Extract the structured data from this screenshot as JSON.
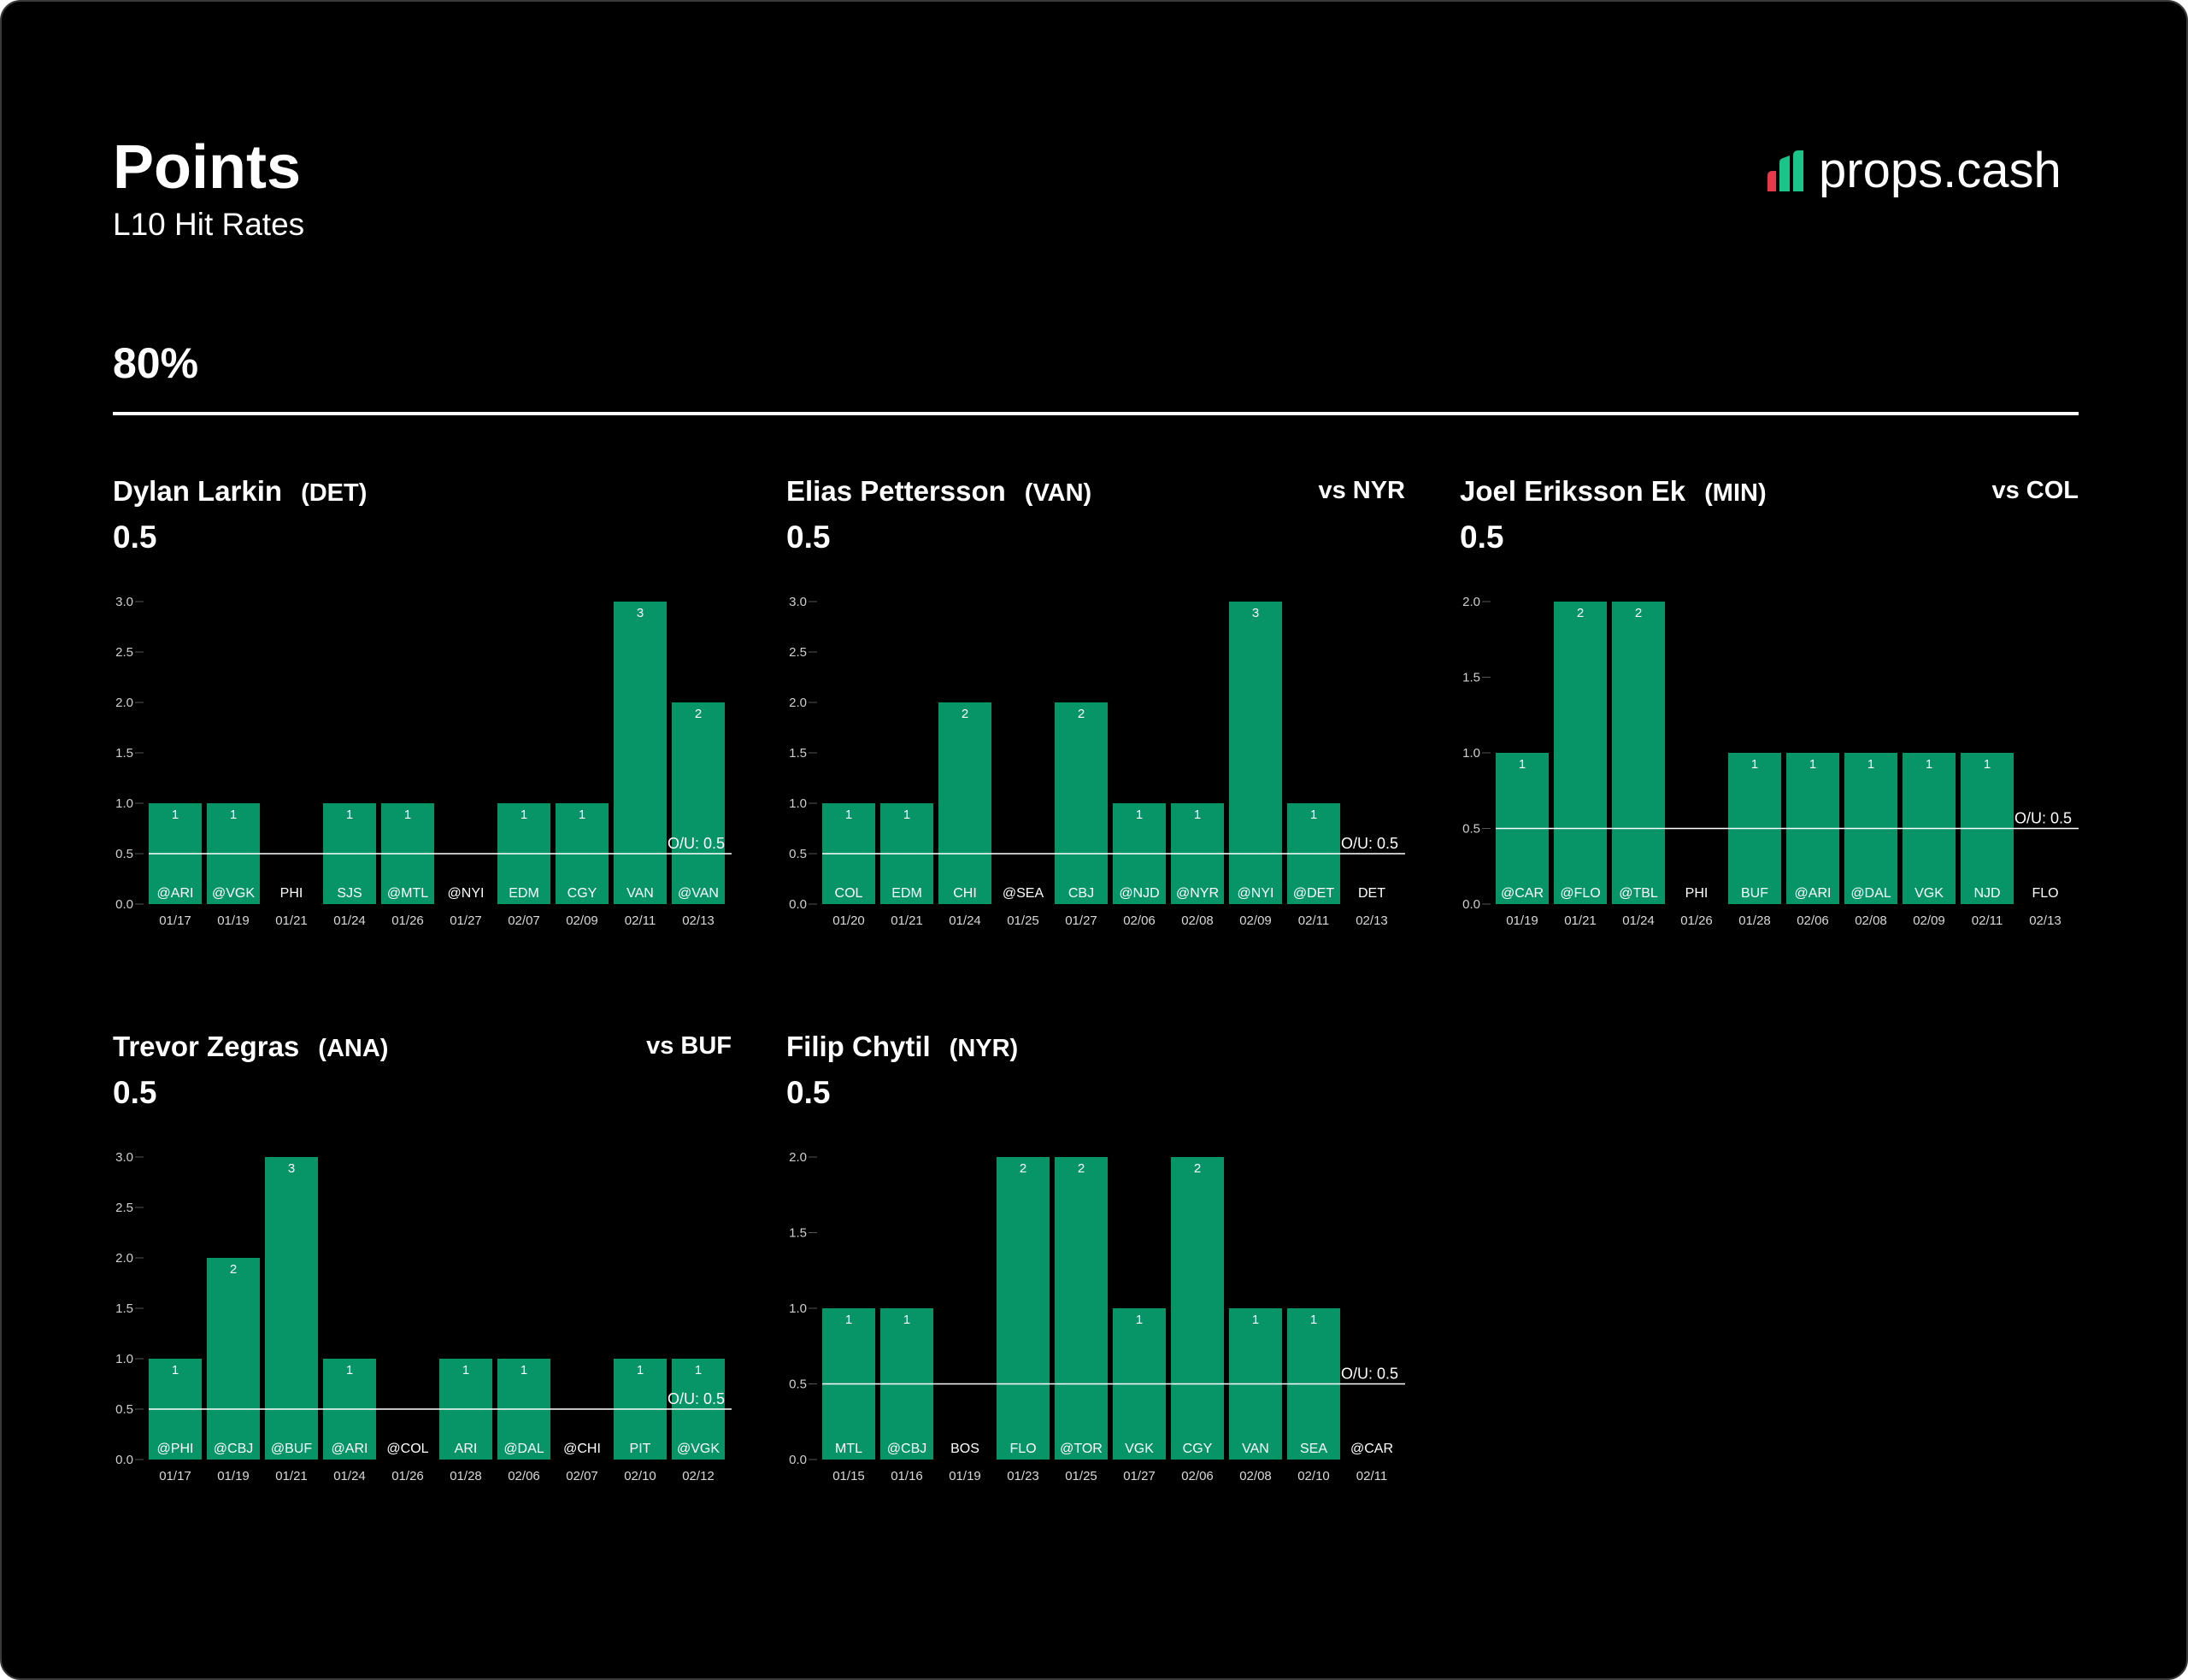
{
  "header": {
    "title": "Points",
    "subtitle": "L10 Hit Rates",
    "logo_text": "props.cash",
    "hit_rate": "80%"
  },
  "colors": {
    "background": "#000000",
    "bar": "#079467",
    "text": "#ffffff",
    "logo_red": "#e8394a",
    "logo_green": "#19c587"
  },
  "chart_data": [
    {
      "type": "bar",
      "player": "Dylan Larkin",
      "team": "(DET)",
      "opponent": "",
      "line_label": "0.5",
      "threshold": 0.5,
      "threshold_label": "O/U: 0.5",
      "ylim": [
        0,
        3.0
      ],
      "yticks": [
        "0.0",
        "0.5",
        "1.0",
        "1.5",
        "2.0",
        "2.5",
        "3.0"
      ],
      "categories": [
        "01/17",
        "01/19",
        "01/21",
        "01/24",
        "01/26",
        "01/27",
        "02/07",
        "02/09",
        "02/11",
        "02/13"
      ],
      "opponents": [
        "@ARI",
        "@VGK",
        "PHI",
        "SJS",
        "@MTL",
        "@NYI",
        "EDM",
        "CGY",
        "VAN",
        "@VAN"
      ],
      "values": [
        1,
        1,
        0,
        1,
        1,
        0,
        1,
        1,
        3,
        2
      ]
    },
    {
      "type": "bar",
      "player": "Elias Pettersson",
      "team": "(VAN)",
      "opponent": "vs NYR",
      "line_label": "0.5",
      "threshold": 0.5,
      "threshold_label": "O/U: 0.5",
      "ylim": [
        0,
        3.0
      ],
      "yticks": [
        "0.0",
        "0.5",
        "1.0",
        "1.5",
        "2.0",
        "2.5",
        "3.0"
      ],
      "categories": [
        "01/20",
        "01/21",
        "01/24",
        "01/25",
        "01/27",
        "02/06",
        "02/08",
        "02/09",
        "02/11",
        "02/13"
      ],
      "opponents": [
        "COL",
        "EDM",
        "CHI",
        "@SEA",
        "CBJ",
        "@NJD",
        "@NYR",
        "@NYI",
        "@DET",
        "DET"
      ],
      "values": [
        1,
        1,
        2,
        0,
        2,
        1,
        1,
        3,
        1,
        0
      ]
    },
    {
      "type": "bar",
      "player": "Joel Eriksson Ek",
      "team": "(MIN)",
      "opponent": "vs COL",
      "line_label": "0.5",
      "threshold": 0.5,
      "threshold_label": "O/U: 0.5",
      "ylim": [
        0,
        2.0
      ],
      "yticks": [
        "0.0",
        "0.5",
        "1.0",
        "1.5",
        "2.0"
      ],
      "categories": [
        "01/19",
        "01/21",
        "01/24",
        "01/26",
        "01/28",
        "02/06",
        "02/08",
        "02/09",
        "02/11",
        "02/13"
      ],
      "opponents": [
        "@CAR",
        "@FLO",
        "@TBL",
        "PHI",
        "BUF",
        "@ARI",
        "@DAL",
        "VGK",
        "NJD",
        "FLO"
      ],
      "values": [
        1,
        2,
        2,
        0,
        1,
        1,
        1,
        1,
        1,
        0
      ]
    },
    {
      "type": "bar",
      "player": "Trevor Zegras",
      "team": "(ANA)",
      "opponent": "vs BUF",
      "line_label": "0.5",
      "threshold": 0.5,
      "threshold_label": "O/U: 0.5",
      "ylim": [
        0,
        3.0
      ],
      "yticks": [
        "0.0",
        "0.5",
        "1.0",
        "1.5",
        "2.0",
        "2.5",
        "3.0"
      ],
      "categories": [
        "01/17",
        "01/19",
        "01/21",
        "01/24",
        "01/26",
        "01/28",
        "02/06",
        "02/07",
        "02/10",
        "02/12"
      ],
      "opponents": [
        "@PHI",
        "@CBJ",
        "@BUF",
        "@ARI",
        "@COL",
        "ARI",
        "@DAL",
        "@CHI",
        "PIT",
        "@VGK"
      ],
      "values": [
        1,
        2,
        3,
        1,
        0,
        1,
        1,
        0,
        1,
        1
      ]
    },
    {
      "type": "bar",
      "player": "Filip Chytil",
      "team": "(NYR)",
      "opponent": "",
      "line_label": "0.5",
      "threshold": 0.5,
      "threshold_label": "O/U: 0.5",
      "ylim": [
        0,
        2.0
      ],
      "yticks": [
        "0.0",
        "0.5",
        "1.0",
        "1.5",
        "2.0"
      ],
      "categories": [
        "01/15",
        "01/16",
        "01/19",
        "01/23",
        "01/25",
        "01/27",
        "02/06",
        "02/08",
        "02/10",
        "02/11"
      ],
      "opponents": [
        "MTL",
        "@CBJ",
        "BOS",
        "FLO",
        "@TOR",
        "VGK",
        "CGY",
        "VAN",
        "SEA",
        "@CAR"
      ],
      "values": [
        1,
        1,
        0,
        2,
        2,
        1,
        2,
        1,
        1,
        0
      ]
    }
  ]
}
